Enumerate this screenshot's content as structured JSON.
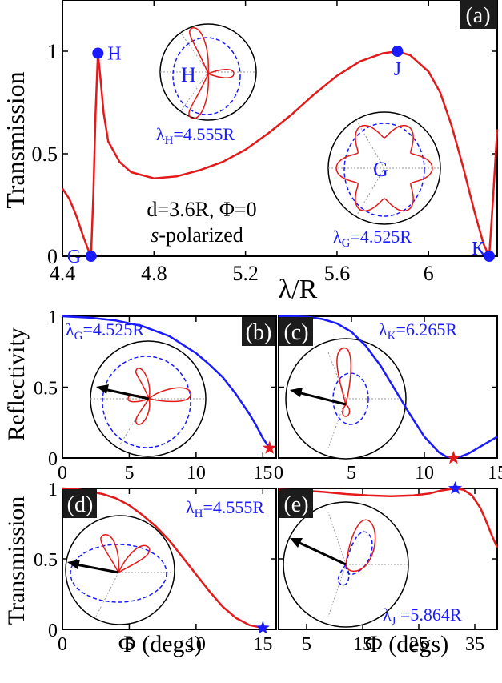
{
  "colors": {
    "red": "#e41a1a",
    "blue": "#1a1aff",
    "black": "#000000",
    "tag_bg": "#1c1c1c",
    "grid": "#9a9a9a"
  },
  "chart_data": [
    {
      "panel": "(a)",
      "type": "line",
      "xlabel_main": "λ/R",
      "ylabel": "Transmission",
      "xlim": [
        4.4,
        6.3
      ],
      "ylim": [
        0,
        1.25
      ],
      "xticks": [
        "4.4",
        "4.8",
        "5.2",
        "5.6",
        "6"
      ],
      "yticks": [
        "0",
        "0.5",
        "1"
      ],
      "annotation_line1": "d=3.6R, Φ=0",
      "annotation_pol": "s",
      "annotation_line2": "-polarized",
      "points": [
        {
          "label": "G",
          "x": 4.525,
          "y": 0.0
        },
        {
          "label": "H",
          "x": 4.555,
          "y": 0.99
        },
        {
          "label": "J",
          "x": 5.864,
          "y": 1.0
        },
        {
          "label": "K",
          "x": 6.265,
          "y": 0.0
        }
      ],
      "inset_labels": {
        "H": "H",
        "G": "G"
      },
      "lambda_H_text": "λH=4.555R",
      "lambda_G_text": "λG=4.525R",
      "series": [
        {
          "x": [
            4.4,
            4.43,
            4.46,
            4.49,
            4.51,
            4.525,
            4.535,
            4.545,
            4.555,
            4.565,
            4.58,
            4.6,
            4.65,
            4.7,
            4.8,
            4.9,
            5.0,
            5.1,
            5.2,
            5.3,
            5.4,
            5.5,
            5.6,
            5.7,
            5.8,
            5.864,
            5.92,
            6.0,
            6.05,
            6.1,
            6.15,
            6.2,
            6.24,
            6.265,
            6.28,
            6.3
          ],
          "y": [
            0.33,
            0.28,
            0.2,
            0.1,
            0.04,
            0.0,
            0.3,
            0.7,
            0.99,
            0.88,
            0.7,
            0.56,
            0.46,
            0.41,
            0.38,
            0.39,
            0.42,
            0.46,
            0.52,
            0.6,
            0.69,
            0.79,
            0.88,
            0.95,
            0.99,
            1.0,
            0.98,
            0.9,
            0.8,
            0.64,
            0.44,
            0.22,
            0.06,
            0.0,
            0.25,
            0.62
          ]
        }
      ]
    },
    {
      "panel": "(b)",
      "type": "line",
      "ylabel": "Reflectivity",
      "xlim": [
        0,
        16
      ],
      "ylim": [
        0,
        1
      ],
      "xticks": [
        "0",
        "5",
        "10",
        "15"
      ],
      "yticks": [
        "0",
        "0.5",
        "1"
      ],
      "lambda_text": "λG=4.525R",
      "star": {
        "x": 15.5,
        "y": 0.07
      },
      "series": [
        {
          "x": [
            0,
            2,
            4,
            6,
            8,
            10,
            11,
            12,
            13,
            14,
            14.5,
            15,
            15.5
          ],
          "y": [
            1.0,
            0.99,
            0.97,
            0.93,
            0.86,
            0.74,
            0.66,
            0.57,
            0.45,
            0.31,
            0.23,
            0.14,
            0.07
          ]
        }
      ]
    },
    {
      "panel": "(c)",
      "type": "line",
      "xlim": [
        0,
        15
      ],
      "ylim": [
        0,
        1
      ],
      "xticks": [
        "0",
        "5",
        "10",
        "15"
      ],
      "lambda_text": "λK=6.265R",
      "star": {
        "x": 12,
        "y": 0.0
      },
      "series": [
        {
          "x": [
            0,
            1,
            2,
            3,
            4,
            5,
            6,
            7,
            8,
            9,
            10,
            11,
            11.5,
            12,
            12.5,
            13,
            13.5,
            14,
            14.5,
            15
          ],
          "y": [
            1.0,
            1.0,
            0.995,
            0.98,
            0.95,
            0.89,
            0.79,
            0.65,
            0.48,
            0.31,
            0.15,
            0.04,
            0.01,
            0.0,
            0.01,
            0.03,
            0.06,
            0.09,
            0.12,
            0.15
          ]
        }
      ]
    },
    {
      "panel": "(d)",
      "type": "line",
      "ylabel": "Transmission",
      "xlabel_main": "Φ (degs)",
      "xlim": [
        0,
        16
      ],
      "ylim": [
        0,
        1
      ],
      "xticks": [
        "0",
        "5",
        "10",
        "15"
      ],
      "yticks": [
        "0",
        "0.5",
        "1"
      ],
      "lambda_text": "λH=4.555R",
      "star": {
        "x": 15,
        "y": 0.01
      },
      "series": [
        {
          "x": [
            0,
            1,
            2,
            3,
            4,
            5,
            6,
            7,
            8,
            9,
            10,
            11,
            12,
            13,
            14,
            15
          ],
          "y": [
            1.0,
            0.995,
            0.98,
            0.96,
            0.93,
            0.88,
            0.81,
            0.73,
            0.63,
            0.51,
            0.39,
            0.27,
            0.16,
            0.08,
            0.03,
            0.01
          ]
        }
      ]
    },
    {
      "panel": "(e)",
      "type": "line",
      "xlabel_main": "Φ (degs)",
      "xlim": [
        0,
        39
      ],
      "ylim": [
        0,
        1
      ],
      "xticks": [
        "5",
        "15",
        "25",
        "35"
      ],
      "lambda_text": "λJ =5.864R",
      "star": {
        "x": 31.5,
        "y": 1.0
      },
      "series": [
        {
          "x": [
            0,
            4,
            8,
            12,
            16,
            20,
            24,
            27,
            29,
            31.5,
            33,
            34.5,
            36,
            37,
            38,
            39
          ],
          "y": [
            0.99,
            0.985,
            0.975,
            0.96,
            0.95,
            0.945,
            0.95,
            0.965,
            0.985,
            1.0,
            0.99,
            0.95,
            0.86,
            0.77,
            0.67,
            0.58
          ]
        }
      ]
    }
  ],
  "tags": [
    "(a)",
    "(b)",
    "(c)",
    "(d)",
    "(e)"
  ]
}
